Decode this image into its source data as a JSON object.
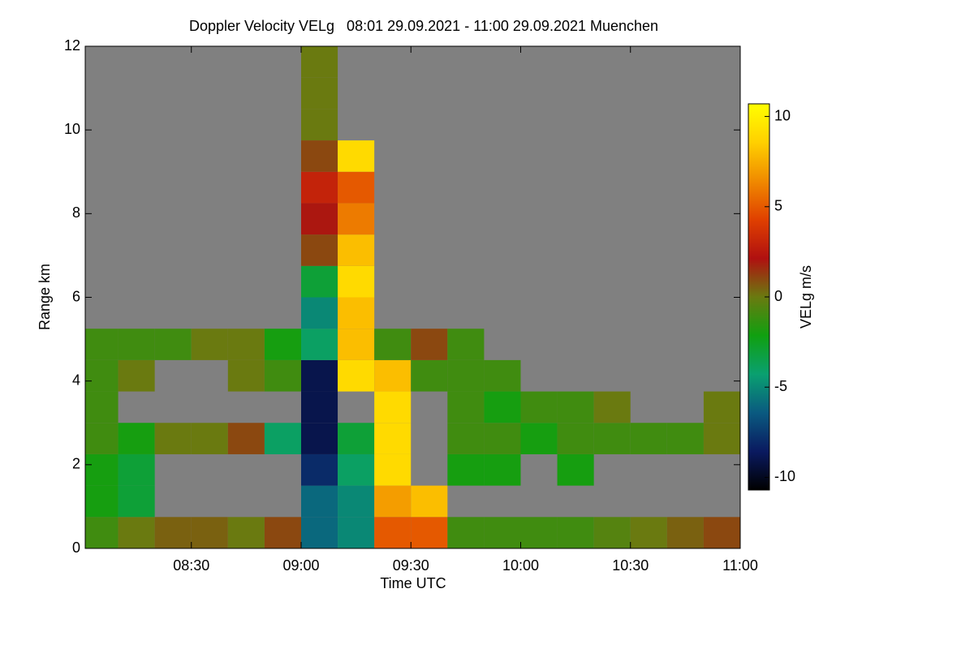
{
  "chart_data": {
    "type": "heatmap",
    "title": "Doppler Velocity VELg   08:01 29.09.2021 - 11:00 29.09.2021 Muenchen",
    "x_label": "Time UTC",
    "y_label": "Range km",
    "colorbar_label": "VELg m/s",
    "xlim": [
      481,
      660
    ],
    "xticks": [
      {
        "value": 510,
        "label": "08:30"
      },
      {
        "value": 540,
        "label": "09:00"
      },
      {
        "value": 570,
        "label": "09:30"
      },
      {
        "value": 600,
        "label": "10:00"
      },
      {
        "value": 630,
        "label": "10:30"
      },
      {
        "value": 660,
        "label": "11:00"
      }
    ],
    "ylim": [
      0,
      12
    ],
    "yticks": [
      0,
      2,
      4,
      6,
      8,
      10,
      12
    ],
    "clim": [
      -10.7,
      10.7
    ],
    "cticks": [
      -10,
      -5,
      0,
      5,
      10
    ],
    "colorscale": [
      "#000000",
      "#0a1a60",
      "#0a5a80",
      "#0aa070",
      "#10a010",
      "#6a7a10",
      "#b01010",
      "#e04000",
      "#f08a00",
      "#ffd000",
      "#ffff00"
    ],
    "background": "#808080",
    "x": [
      485,
      495,
      505,
      515,
      525,
      535,
      545,
      555,
      565,
      575,
      585,
      595,
      605,
      615,
      625,
      635,
      645,
      655
    ],
    "y": [
      0.375,
      1.125,
      1.875,
      2.625,
      3.375,
      4.125,
      4.875,
      5.625,
      6.375,
      7.125,
      7.875,
      8.625,
      9.375,
      10.125,
      10.875,
      11.625
    ],
    "values": [
      [
        -1,
        0,
        0.5,
        0.5,
        0,
        1,
        -6,
        -5,
        5,
        5,
        -1,
        -1,
        -1,
        -1,
        -0.5,
        0,
        0.5,
        1
      ],
      [
        -2,
        -3,
        null,
        null,
        null,
        null,
        -6,
        -5,
        7,
        8,
        null,
        null,
        null,
        null,
        null,
        null,
        null,
        null
      ],
      [
        -2,
        -3,
        null,
        null,
        null,
        null,
        -8,
        -4,
        9,
        null,
        -2,
        -2,
        null,
        -2,
        null,
        null,
        null,
        null
      ],
      [
        -1,
        -2,
        0,
        0,
        1,
        -4,
        -9,
        -3,
        9,
        null,
        -1,
        -1,
        -2,
        -1,
        -1,
        -1,
        -1,
        0
      ],
      [
        -1,
        null,
        null,
        null,
        null,
        null,
        -9,
        null,
        9,
        null,
        -1,
        -2,
        -1,
        -1,
        0,
        null,
        null,
        0
      ],
      [
        -1,
        0,
        null,
        null,
        0,
        -1,
        -9,
        9,
        8,
        -1,
        -1,
        -1,
        null,
        null,
        null,
        null,
        null,
        null
      ],
      [
        -1,
        -1,
        -1,
        0,
        0,
        -2,
        -4,
        8,
        -1,
        1,
        -1,
        null,
        null,
        null,
        null,
        null,
        null,
        null
      ],
      [
        null,
        null,
        null,
        null,
        null,
        null,
        -5,
        8,
        null,
        null,
        null,
        null,
        null,
        null,
        null,
        null,
        null,
        null
      ],
      [
        null,
        null,
        null,
        null,
        null,
        null,
        -3,
        9,
        null,
        null,
        null,
        null,
        null,
        null,
        null,
        null,
        null,
        null
      ],
      [
        null,
        null,
        null,
        null,
        null,
        null,
        1,
        8,
        null,
        null,
        null,
        null,
        null,
        null,
        null,
        null,
        null,
        null
      ],
      [
        null,
        null,
        null,
        null,
        null,
        null,
        2,
        6,
        null,
        null,
        null,
        null,
        null,
        null,
        null,
        null,
        null,
        null
      ],
      [
        null,
        null,
        null,
        null,
        null,
        null,
        3,
        5,
        null,
        null,
        null,
        null,
        null,
        null,
        null,
        null,
        null,
        null
      ],
      [
        null,
        null,
        null,
        null,
        null,
        null,
        1,
        9,
        null,
        null,
        null,
        null,
        null,
        null,
        null,
        null,
        null,
        null
      ],
      [
        null,
        null,
        null,
        null,
        null,
        null,
        0,
        null,
        null,
        null,
        null,
        null,
        null,
        null,
        null,
        null,
        null,
        null
      ],
      [
        null,
        null,
        null,
        null,
        null,
        null,
        0,
        null,
        null,
        null,
        null,
        null,
        null,
        null,
        null,
        null,
        null,
        null
      ],
      [
        null,
        null,
        null,
        null,
        null,
        null,
        0,
        null,
        null,
        null,
        null,
        null,
        null,
        null,
        null,
        null,
        null,
        null
      ]
    ]
  }
}
